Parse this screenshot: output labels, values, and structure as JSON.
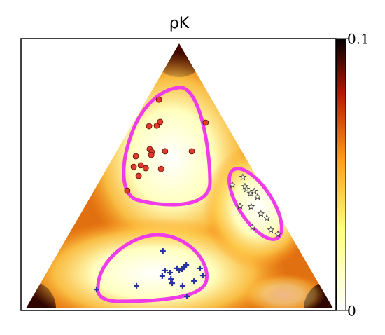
{
  "chart_data": {
    "type": "scatter",
    "title": "ρK",
    "colorbar": {
      "lim": [
        0,
        0.1
      ],
      "ticks": [
        0,
        0.1
      ]
    },
    "series": [
      {
        "color": "#e03a2e",
        "marker": "circle",
        "x": [
          0.433,
          0.401,
          0.426,
          0.437,
          0.585,
          0.403,
          0.41,
          0.408,
          0.453,
          0.54,
          0.358,
          0.351,
          0.374,
          0.39,
          0.367,
          0.44,
          0.33
        ],
        "values": [
          0.788,
          0.688,
          0.69,
          0.704,
          0.701,
          0.601,
          0.59,
          0.579,
          0.593,
          0.593,
          0.574,
          0.534,
          0.54,
          0.529,
          0.5,
          0.526,
          0.444
        ]
      },
      {
        "color": "#f4f0e0",
        "marker": "star",
        "x": [
          0.706,
          0.672,
          0.713,
          0.718,
          0.731,
          0.743,
          0.754,
          0.697,
          0.733,
          0.765,
          0.784,
          0.738,
          0.797,
          0.82
        ],
        "values": [
          0.495,
          0.466,
          0.46,
          0.45,
          0.434,
          0.442,
          0.421,
          0.386,
          0.384,
          0.357,
          0.341,
          0.307,
          0.296,
          0.28
        ]
      },
      {
        "color": "#2633a0",
        "marker": "plus",
        "x": [
          0.446,
          0.522,
          0.513,
          0.508,
          0.567,
          0.453,
          0.469,
          0.499,
          0.444,
          0.576,
          0.472,
          0.476,
          0.547,
          0.51,
          0.36,
          0.23,
          0.524,
          0.492
        ],
        "values": [
          0.217,
          0.164,
          0.156,
          0.148,
          0.151,
          0.143,
          0.135,
          0.143,
          0.122,
          0.124,
          0.111,
          0.095,
          0.103,
          0.085,
          0.085,
          0.071,
          0.045,
          0.151
        ]
      }
    ]
  }
}
